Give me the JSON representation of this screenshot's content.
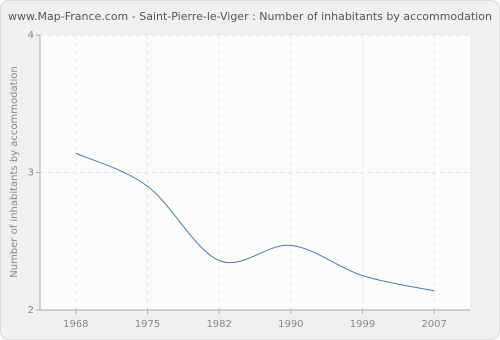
{
  "chart_data": {
    "type": "line",
    "title": "www.Map-France.com - Saint-Pierre-le-Viger : Number of inhabitants by accommodation",
    "y_label": "Number of inhabitants by accommodation",
    "categories": [
      "1968",
      "1975",
      "1982",
      "1990",
      "1999",
      "2007"
    ],
    "values": [
      3.14,
      2.9,
      2.36,
      2.47,
      2.25,
      2.14
    ],
    "color": "#4f7aa8",
    "ylim": [
      2,
      4
    ],
    "yticks": [
      2,
      3,
      4
    ],
    "grid": true
  }
}
